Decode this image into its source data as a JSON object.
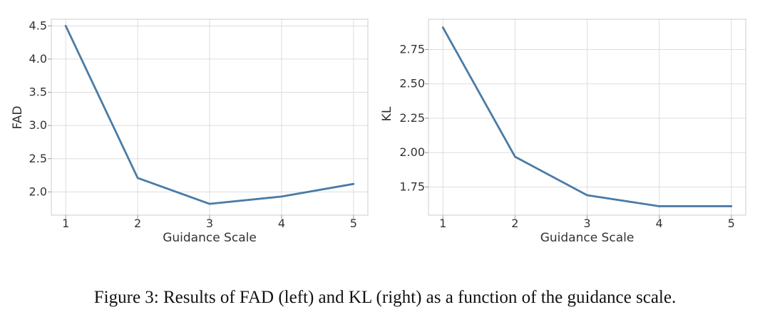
{
  "chart_data": [
    {
      "type": "line",
      "x": [
        1,
        2,
        3,
        4,
        5
      ],
      "series": [
        {
          "values": [
            4.5,
            2.21,
            1.82,
            1.93,
            2.12
          ]
        }
      ],
      "xlabel": "Guidance Scale",
      "ylabel": "FAD",
      "xticks": [
        1,
        2,
        3,
        4,
        5
      ],
      "yticks": [
        2.0,
        2.5,
        3.0,
        3.5,
        4.0,
        4.5
      ],
      "ytick_labels": [
        "2.0",
        "2.5",
        "3.0",
        "3.5",
        "4.0",
        "4.5"
      ],
      "xlim": [
        0.8,
        5.2
      ],
      "ylim": [
        1.65,
        4.6
      ],
      "grid": true
    },
    {
      "type": "line",
      "x": [
        1,
        2,
        3,
        4,
        5
      ],
      "series": [
        {
          "values": [
            2.91,
            1.97,
            1.69,
            1.61,
            1.61
          ]
        }
      ],
      "xlabel": "Guidance Scale",
      "ylabel": "KL",
      "xticks": [
        1,
        2,
        3,
        4,
        5
      ],
      "yticks": [
        1.75,
        2.0,
        2.25,
        2.5,
        2.75
      ],
      "ytick_labels": [
        "1.75",
        "2.00",
        "2.25",
        "2.50",
        "2.75"
      ],
      "xlim": [
        0.8,
        5.2
      ],
      "ylim": [
        1.545,
        2.97
      ],
      "grid": true
    }
  ],
  "colors": {
    "line": "#4a7ba6",
    "grid": "#dddddd",
    "spine": "#cccccc"
  },
  "caption": "Figure 3:  Results of FAD (left) and KL (right) as a function of the guidance scale."
}
